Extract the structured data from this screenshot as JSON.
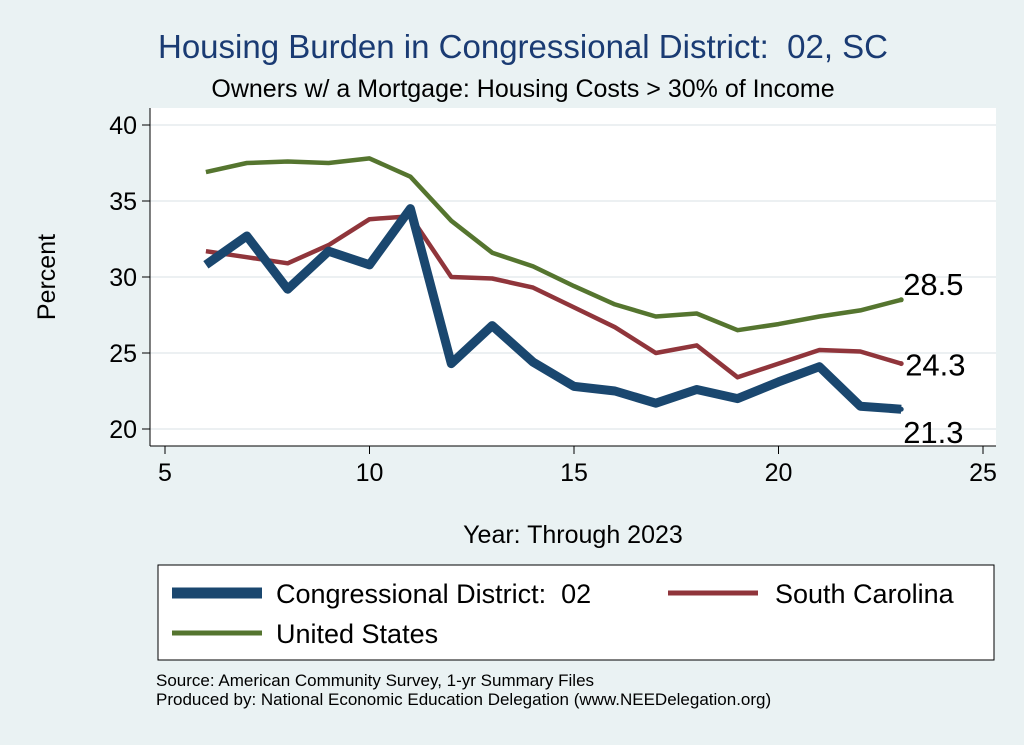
{
  "chart_data": {
    "type": "line",
    "title": "Housing Burden in Congressional District:  02, SC",
    "subtitle": "Owners w/ a Mortgage: Housing Costs > 30% of Income",
    "xlabel": "Year: Through 2023",
    "ylabel": "Percent",
    "xlim": [
      5,
      25
    ],
    "ylim": [
      19,
      41
    ],
    "xticks": [
      5,
      10,
      15,
      20,
      25
    ],
    "yticks": [
      20,
      25,
      30,
      35,
      40
    ],
    "grid": true,
    "legend_position": "bottom",
    "series": [
      {
        "name": "Congressional District:  02",
        "color": "#1a476f",
        "x": [
          6,
          7,
          8,
          9,
          10,
          11,
          12,
          13,
          14,
          15,
          16,
          17,
          18,
          19,
          20,
          21,
          22,
          23
        ],
        "values": [
          30.8,
          32.7,
          29.2,
          31.7,
          30.8,
          34.5,
          24.3,
          26.8,
          24.4,
          22.8,
          22.5,
          21.7,
          22.6,
          22.0,
          23.1,
          24.1,
          21.5,
          21.3
        ],
        "end_label": "21.3"
      },
      {
        "name": "South Carolina",
        "color": "#90353b",
        "x": [
          6,
          7,
          8,
          9,
          10,
          11,
          12,
          13,
          14,
          15,
          16,
          17,
          18,
          19,
          20,
          21,
          22,
          23
        ],
        "values": [
          31.7,
          31.3,
          30.9,
          32.1,
          33.8,
          34.0,
          30.0,
          29.9,
          29.3,
          28.0,
          26.7,
          25.0,
          25.5,
          23.4,
          24.3,
          25.2,
          25.1,
          24.3
        ],
        "end_label": "24.3"
      },
      {
        "name": "United States",
        "color": "#55752f",
        "x": [
          6,
          7,
          8,
          9,
          10,
          11,
          12,
          13,
          14,
          15,
          16,
          17,
          18,
          19,
          20,
          21,
          22,
          23
        ],
        "values": [
          36.9,
          37.5,
          37.6,
          37.5,
          37.8,
          36.6,
          33.7,
          31.6,
          30.7,
          29.4,
          28.2,
          27.4,
          27.6,
          26.5,
          26.9,
          27.4,
          27.8,
          28.5
        ],
        "end_label": "28.5"
      }
    ]
  },
  "source_lines": [
    "Source: American Community Survey, 1-yr Summary Files",
    "Produced by: National Economic Education Delegation (www.NEEDelegation.org)"
  ]
}
